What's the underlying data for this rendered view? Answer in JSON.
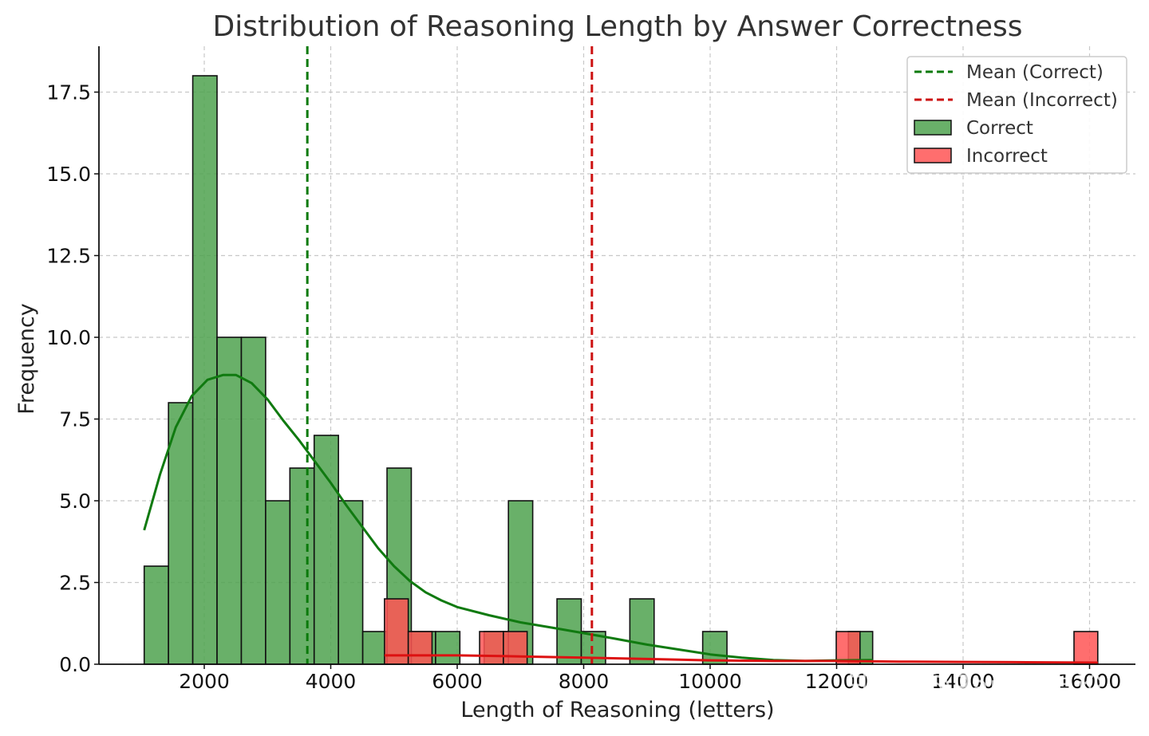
{
  "chart_data": {
    "type": "bar",
    "title": "Distribution of Reasoning Length by Answer Correctness",
    "xlabel": "Length of Reasoning (letters)",
    "ylabel": "Frequency",
    "xlim": [
      0,
      15800
    ],
    "ylim": [
      0,
      18.9
    ],
    "xticks": [
      2000,
      4000,
      6000,
      8000,
      10000,
      12000,
      14000,
      16000
    ],
    "xtick_labels": [
      "2000",
      "4000",
      "6000",
      "8000",
      "10000",
      "12000",
      "14000",
      "16000"
    ],
    "yticks": [
      0,
      2.5,
      5,
      7.5,
      10,
      12.5,
      15,
      17.5
    ],
    "ytick_labels": [
      "0.0",
      "2.5",
      "5.0",
      "7.5",
      "10.0",
      "12.5",
      "15.0",
      "17.5"
    ],
    "grid": true,
    "legend_position": "top-right",
    "legend": [
      "Mean (Correct)",
      "Mean (Incorrect)",
      "Correct",
      "Incorrect"
    ],
    "series": [
      {
        "name": "Correct",
        "color": "#4fa24f",
        "bin_width": 384,
        "bins": [
          {
            "x0": 1050,
            "y": 3
          },
          {
            "x0": 1434,
            "y": 8
          },
          {
            "x0": 1818,
            "y": 18
          },
          {
            "x0": 2202,
            "y": 10
          },
          {
            "x0": 2586,
            "y": 10
          },
          {
            "x0": 2970,
            "y": 5
          },
          {
            "x0": 3354,
            "y": 6
          },
          {
            "x0": 3738,
            "y": 7
          },
          {
            "x0": 4122,
            "y": 5
          },
          {
            "x0": 4506,
            "y": 1
          },
          {
            "x0": 4890,
            "y": 6
          },
          {
            "x0": 5274,
            "y": 1
          },
          {
            "x0": 5658,
            "y": 1
          },
          {
            "x0": 6426,
            "y": 1
          },
          {
            "x0": 6810,
            "y": 5
          },
          {
            "x0": 7578,
            "y": 2
          },
          {
            "x0": 7962,
            "y": 1
          },
          {
            "x0": 8730,
            "y": 2
          },
          {
            "x0": 9882,
            "y": 1
          },
          {
            "x0": 12186,
            "y": 1
          }
        ]
      },
      {
        "name": "Incorrect",
        "color": "#ff5555",
        "bin_width": 376,
        "bins": [
          {
            "x0": 4850,
            "y": 2
          },
          {
            "x0": 5226,
            "y": 1
          },
          {
            "x0": 6354,
            "y": 1
          },
          {
            "x0": 6730,
            "y": 1
          },
          {
            "x0": 11994,
            "y": 1
          },
          {
            "x0": 15754,
            "y": 1
          }
        ]
      }
    ],
    "kde": [
      {
        "series": "Correct",
        "color": "#107a10",
        "points": [
          [
            1050,
            4.1
          ],
          [
            1300,
            5.8
          ],
          [
            1550,
            7.25
          ],
          [
            1800,
            8.2
          ],
          [
            2050,
            8.7
          ],
          [
            2300,
            8.85
          ],
          [
            2500,
            8.85
          ],
          [
            2750,
            8.6
          ],
          [
            3000,
            8.1
          ],
          [
            3250,
            7.45
          ],
          [
            3500,
            6.85
          ],
          [
            3750,
            6.2
          ],
          [
            4000,
            5.55
          ],
          [
            4250,
            4.85
          ],
          [
            4500,
            4.2
          ],
          [
            4750,
            3.55
          ],
          [
            5000,
            3.0
          ],
          [
            5250,
            2.55
          ],
          [
            5500,
            2.2
          ],
          [
            5750,
            1.95
          ],
          [
            6000,
            1.75
          ],
          [
            6500,
            1.5
          ],
          [
            7000,
            1.28
          ],
          [
            7500,
            1.12
          ],
          [
            8000,
            0.95
          ],
          [
            8500,
            0.78
          ],
          [
            9000,
            0.6
          ],
          [
            9500,
            0.45
          ],
          [
            10000,
            0.3
          ],
          [
            10500,
            0.2
          ],
          [
            11000,
            0.13
          ],
          [
            11500,
            0.1
          ],
          [
            12000,
            0.12
          ],
          [
            12570,
            0.13
          ]
        ]
      },
      {
        "series": "Incorrect",
        "color": "#dd1111",
        "points": [
          [
            4850,
            0.27
          ],
          [
            6000,
            0.27
          ],
          [
            7000,
            0.24
          ],
          [
            8000,
            0.2
          ],
          [
            9000,
            0.16
          ],
          [
            10000,
            0.12
          ],
          [
            11000,
            0.1
          ],
          [
            12000,
            0.1
          ],
          [
            13000,
            0.08
          ],
          [
            14000,
            0.07
          ],
          [
            15000,
            0.06
          ],
          [
            16130,
            0.05
          ]
        ]
      }
    ],
    "mean_lines": [
      {
        "name": "Mean (Correct)",
        "x": 3630,
        "color": "#0b7a0b"
      },
      {
        "name": "Mean (Incorrect)",
        "x": 8130,
        "color": "#cc1111"
      }
    ]
  },
  "watermark": "知乎 @Paper易论"
}
